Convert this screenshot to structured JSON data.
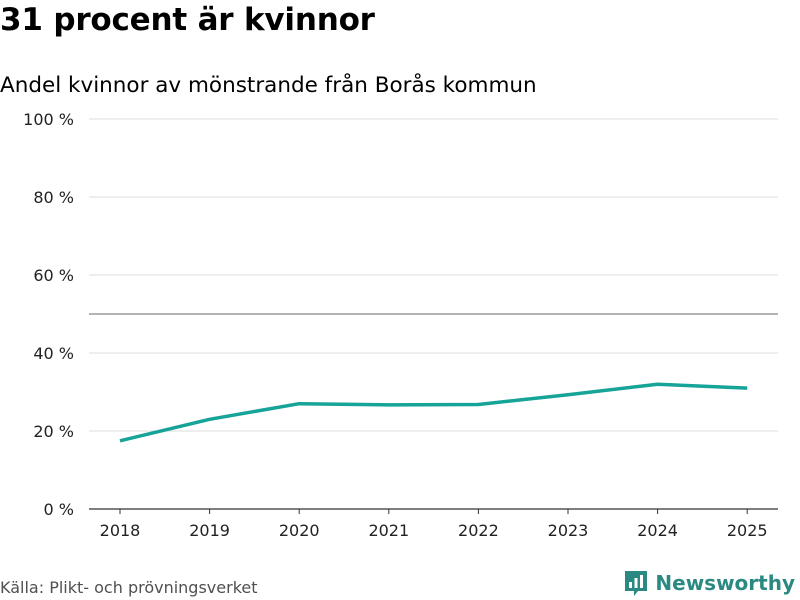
{
  "header": {
    "title": "31 procent är kvinnor",
    "subtitle": "Andel kvinnor av mönstrande från Borås kommun"
  },
  "footer": {
    "source": "Källa: Plikt- och prövningsverket",
    "brand": "Newsworthy",
    "brand_icon": "bar-chart-badge-icon"
  },
  "colors": {
    "line": "#16a398",
    "brand": "#2a8a82",
    "grid": "#dddddd",
    "reference": "#888888"
  },
  "chart_data": {
    "type": "line",
    "x": [
      "2018",
      "2019",
      "2020",
      "2021",
      "2022",
      "2023",
      "2024",
      "2025"
    ],
    "series": [
      {
        "name": "Andel kvinnor",
        "values": [
          17.5,
          23,
          27,
          26.7,
          26.8,
          29.3,
          32,
          31
        ]
      }
    ],
    "ylim": [
      0,
      100
    ],
    "yticks": [
      0,
      20,
      40,
      60,
      80,
      100
    ],
    "ytick_labels": [
      "0 %",
      "20 %",
      "40 %",
      "60 %",
      "80 %",
      "100 %"
    ],
    "reference_line": 50,
    "grid": true,
    "xlabel": "",
    "ylabel": ""
  }
}
